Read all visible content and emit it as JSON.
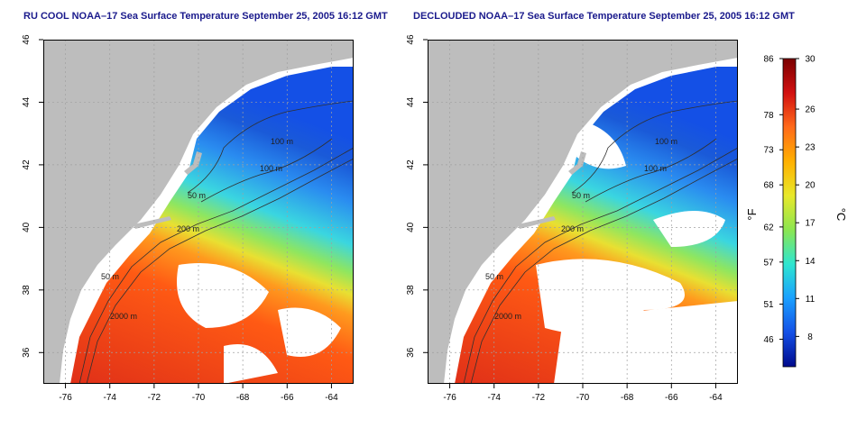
{
  "panels": [
    {
      "title": "RU COOL NOAA–17 Sea Surface Temperature September 25, 2005 16:12 GMT",
      "variant": "full",
      "bath_labels": [
        "100 m",
        "100 m",
        "50 m",
        "200 m",
        "50 m",
        "2000 m"
      ]
    },
    {
      "title": "DECLOUDED NOAA–17 Sea Surface Temperature September 25, 2005 16:12 GMT",
      "variant": "declouded",
      "bath_labels": [
        "100 m",
        "100 m",
        "50 m",
        "200 m",
        "50 m",
        "2000 m"
      ]
    }
  ],
  "axes": {
    "x_ticks": [
      "-76",
      "-74",
      "-72",
      "-70",
      "-68",
      "-66",
      "-64"
    ],
    "y_ticks": [
      "36",
      "38",
      "40",
      "42",
      "44",
      "46"
    ],
    "lon_range": [
      -77,
      -63
    ],
    "lat_range": [
      35,
      46
    ]
  },
  "colorbar": {
    "fahrenheit_ticks": [
      "86",
      "78",
      "73",
      "68",
      "62",
      "57",
      "51",
      "46"
    ],
    "celsius_ticks": [
      "30",
      "26",
      "23",
      "20",
      "17",
      "14",
      "11",
      "8"
    ],
    "fahrenheit_unit": "°F",
    "celsius_unit": "°C",
    "colors": [
      "#7a0000",
      "#d21010",
      "#ff6a1a",
      "#ffb000",
      "#e8e82a",
      "#8ce650",
      "#2ee6d0",
      "#1aa0ff",
      "#1450e6",
      "#000a8c"
    ]
  },
  "colors": {
    "land": "#bdbdbd",
    "grid": "#a0a0a0",
    "contour": "#303030"
  }
}
